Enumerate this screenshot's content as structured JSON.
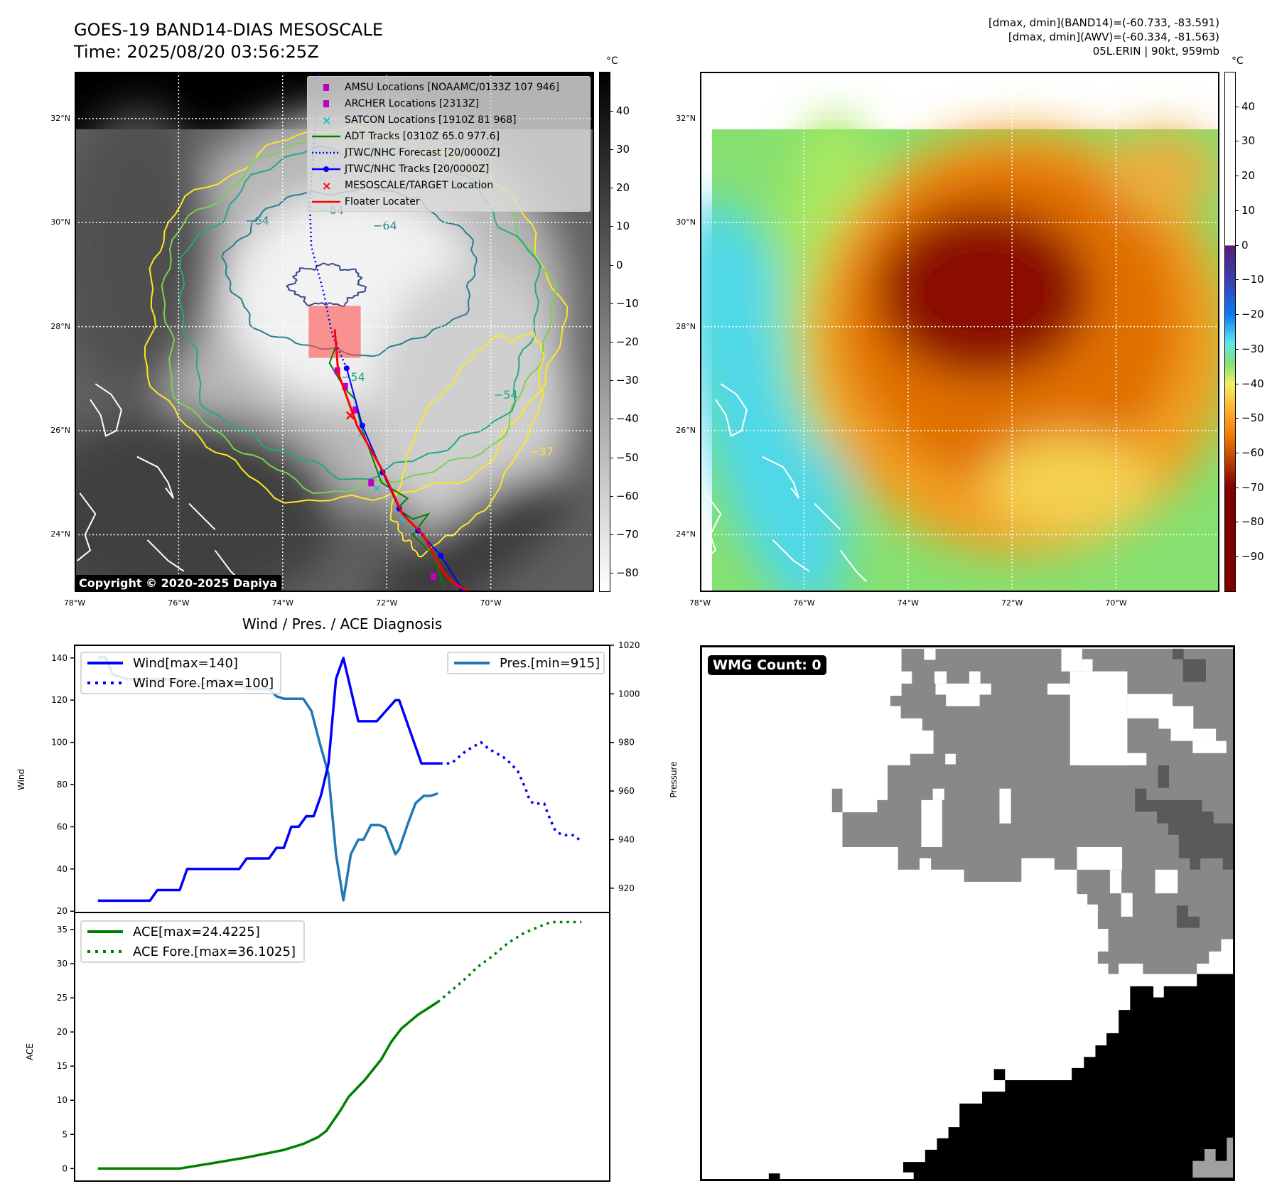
{
  "header": {
    "title": "GOES-19 BAND14-DIAS MESOSCALE",
    "time": "Time: 2025/08/20 03:56:25Z",
    "info": [
      "[dmax, dmin](BAND14)=(-60.733, -83.591)",
      "[dmax, dmin](AWV)=(-60.334, -81.563)",
      "05L.ERIN | 90kt, 959mb"
    ]
  },
  "map_ir": {
    "lat_labels": [
      "32°N",
      "30°N",
      "28°N",
      "26°N",
      "24°N"
    ],
    "lats": [
      32,
      30,
      28,
      26,
      24
    ],
    "lon_labels": [
      "78°W",
      "76°W",
      "74°W",
      "72°W",
      "70°W"
    ],
    "lons": [
      -78,
      -76,
      -74,
      -72,
      -70
    ],
    "extent": {
      "lon": [
        -78,
        -68.0
      ],
      "lat": [
        22.9,
        32.9
      ]
    },
    "legend": [
      {
        "label": "AMSU Locations [NOAAMC/0133Z 107 946]",
        "symbol": "square",
        "color": "#c000c0"
      },
      {
        "label": "ARCHER Locations [2313Z]",
        "symbol": "square",
        "color": "#c000c0"
      },
      {
        "label": "SATCON Locations [1910Z 81 968]",
        "symbol": "x",
        "color": "#17bfbf"
      },
      {
        "label": "ADT Tracks [0310Z 65.0 977.6]",
        "symbol": "line",
        "color": "#008000"
      },
      {
        "label": "JTWC/NHC Forecast [20/0000Z]",
        "symbol": "dotted",
        "color": "#0000ff"
      },
      {
        "label": "JTWC/NHC Tracks [20/0000Z]",
        "symbol": "line-dot",
        "color": "#0000ff"
      },
      {
        "label": "MESOSCALE/TARGET Location",
        "symbol": "x",
        "color": "#ff0000"
      },
      {
        "label": "Floater Locater",
        "symbol": "line",
        "color": "#ff0000"
      }
    ],
    "contour_labels": [
      "−64",
      "−64",
      "−64",
      "−54",
      "−54",
      "−37"
    ],
    "copyright": "Copyright © 2020-2025 Dapiya",
    "colorbar": {
      "unit": "°C",
      "ticks": [
        "40",
        "30",
        "20",
        "10",
        "0",
        "−10",
        "−20",
        "−30",
        "−40",
        "−50",
        "−60",
        "−70",
        "−80"
      ],
      "values": [
        40,
        30,
        20,
        10,
        0,
        -10,
        -20,
        -30,
        -40,
        -50,
        -60,
        -70,
        -80
      ],
      "range": [
        -84.4,
        50.3
      ]
    },
    "tracks": {
      "jtwc": [
        [
          -72.77,
          27.2
        ],
        [
          -72.47,
          26.1
        ],
        [
          -72.08,
          25.2
        ],
        [
          -71.76,
          24.5
        ],
        [
          -71.4,
          24.08
        ],
        [
          -70.96,
          23.6
        ],
        [
          -70.55,
          22.95
        ]
      ],
      "forecast": [
        [
          -72.77,
          27.2
        ],
        [
          -73.05,
          27.85
        ],
        [
          -73.2,
          28.6
        ],
        [
          -73.45,
          29.55
        ],
        [
          -73.48,
          30.4
        ],
        [
          -73.3,
          32.9
        ]
      ],
      "floater": [
        [
          -73.0,
          27.95
        ],
        [
          -72.93,
          27.1
        ],
        [
          -72.57,
          26.1
        ],
        [
          -72.06,
          25.2
        ],
        [
          -71.7,
          24.4
        ],
        [
          -71.3,
          24.0
        ],
        [
          -70.93,
          23.3
        ],
        [
          -70.7,
          23.05
        ],
        [
          -70.4,
          22.9
        ]
      ],
      "adt": [
        [
          -72.95,
          27.7
        ],
        [
          -73.1,
          27.3
        ],
        [
          -72.8,
          26.8
        ],
        [
          -72.6,
          26.6
        ],
        [
          -72.5,
          26.1
        ],
        [
          -72.1,
          25.0
        ],
        [
          -71.6,
          24.7
        ],
        [
          -71.8,
          24.5
        ],
        [
          -71.5,
          24.3
        ],
        [
          -71.2,
          24.4
        ],
        [
          -71.5,
          24.0
        ],
        [
          -71.1,
          23.6
        ],
        [
          -70.9,
          23.0
        ]
      ],
      "amsu": [
        [
          -72.95,
          27.15
        ],
        [
          -72.8,
          26.85
        ],
        [
          -72.6,
          26.4
        ],
        [
          -72.3,
          25.0
        ],
        [
          -71.1,
          23.2
        ]
      ],
      "satcon": [
        [
          -72.5,
          25.95
        ],
        [
          -72.2,
          24.9
        ],
        [
          -71.7,
          24.3
        ],
        [
          -71.45,
          24.1
        ]
      ],
      "target": [
        -72.72,
        26.3
      ],
      "mesoscale_box": {
        "lon": [
          -73.5,
          -72.5
        ],
        "lat": [
          27.4,
          28.4
        ]
      }
    }
  },
  "map_awv": {
    "lat_labels": [
      "32°N",
      "30°N",
      "28°N",
      "26°N",
      "24°N"
    ],
    "lon_labels": [
      "78°W",
      "76°W",
      "74°W",
      "72°W",
      "70°W"
    ],
    "colorbar": {
      "unit": "°C",
      "ticks": [
        "40",
        "30",
        "20",
        "10",
        "0",
        "−10",
        "−20",
        "−30",
        "−40",
        "−50",
        "−60",
        "−70",
        "−80",
        "−90"
      ],
      "values": [
        40,
        30,
        20,
        10,
        0,
        -10,
        -20,
        -30,
        -40,
        -50,
        -60,
        -70,
        -80,
        -90
      ],
      "range": [
        -99.6,
        50.2
      ]
    }
  },
  "chart_data": [
    {
      "type": "line",
      "title": "Wind / Pres. / ACE Diagnosis",
      "xlabel": "",
      "ylabel": "Wind",
      "ylabel_right": "Pressure",
      "xlim": [
        -3.13,
        68.8
      ],
      "ylim": [
        19.4,
        146
      ],
      "ylim_right": [
        910,
        1020
      ],
      "yticks": [
        20,
        40,
        60,
        80,
        100,
        120,
        140
      ],
      "yticks_right": [
        920,
        940,
        960,
        980,
        1000,
        1020
      ],
      "series": [
        {
          "name": "Wind[max=140]",
          "axis": "left",
          "style": "solid",
          "color": "#0000ff",
          "points": [
            [
              0,
              25
            ],
            [
              7,
              25
            ],
            [
              8,
              30
            ],
            [
              11,
              30
            ],
            [
              12,
              40
            ],
            [
              19,
              40
            ],
            [
              20,
              45
            ],
            [
              23,
              45
            ],
            [
              24,
              50
            ],
            [
              25,
              50
            ],
            [
              26,
              60
            ],
            [
              27,
              60
            ],
            [
              28,
              65
            ],
            [
              29,
              65
            ],
            [
              30,
              75
            ],
            [
              31,
              90
            ],
            [
              32,
              130
            ],
            [
              33,
              140
            ],
            [
              35,
              110
            ],
            [
              37.5,
              110
            ],
            [
              40,
              120
            ],
            [
              40.5,
              120
            ],
            [
              43.5,
              90
            ],
            [
              46,
              90
            ]
          ]
        },
        {
          "name": "Wind Fore.[max=100]",
          "axis": "left",
          "style": "dotted",
          "color": "#0000ff",
          "points": [
            [
              46,
              90
            ],
            [
              47.5,
              90
            ],
            [
              48.5,
              93
            ],
            [
              49.5,
              96
            ],
            [
              50.5,
              98
            ],
            [
              51.5,
              100
            ],
            [
              52.5,
              97
            ],
            [
              53.5,
              95
            ],
            [
              54.5,
              93
            ],
            [
              55.5,
              90
            ],
            [
              56.5,
              86
            ],
            [
              57,
              82
            ],
            [
              57.5,
              78
            ],
            [
              58,
              73
            ],
            [
              58.5,
              71
            ],
            [
              60,
              71
            ],
            [
              60.5,
              66
            ],
            [
              61,
              62
            ],
            [
              61.5,
              58
            ],
            [
              62.5,
              56
            ],
            [
              64,
              56
            ],
            [
              65,
              53
            ]
          ]
        },
        {
          "name": "Pres.[min=915]",
          "axis": "right",
          "style": "solid",
          "color": "#1f77b4",
          "points": [
            [
              0,
              1015
            ],
            [
              1,
              1015
            ],
            [
              2,
              1008
            ],
            [
              4,
              1006
            ],
            [
              11,
              1006
            ],
            [
              12,
              1004
            ],
            [
              14.7,
              1004
            ],
            [
              16,
              1006
            ],
            [
              17.5,
              1004
            ],
            [
              19,
              1004
            ],
            [
              20,
              1002
            ],
            [
              23,
              1002
            ],
            [
              24,
              999
            ],
            [
              25,
              998
            ],
            [
              27.6,
              998
            ],
            [
              28.7,
              993
            ],
            [
              29.8,
              980
            ],
            [
              31,
              967
            ],
            [
              32,
              934
            ],
            [
              33,
              915
            ],
            [
              34,
              934
            ],
            [
              35,
              940
            ],
            [
              35.7,
              940
            ],
            [
              36.7,
              946
            ],
            [
              37.8,
              946
            ],
            [
              38.6,
              945
            ],
            [
              40,
              934
            ],
            [
              40.5,
              936
            ],
            [
              41.6,
              946
            ],
            [
              42.7,
              955
            ],
            [
              43.8,
              958
            ],
            [
              44.7,
              958
            ],
            [
              45.7,
              959
            ]
          ]
        }
      ],
      "legend": [
        "top-left",
        "top-right"
      ]
    },
    {
      "type": "line",
      "xlabel": "",
      "ylabel": "ACE",
      "xlim": [
        -3.13,
        68.8
      ],
      "ylim": [
        -1.84,
        37.5
      ],
      "yticks": [
        0,
        5,
        10,
        15,
        20,
        25,
        30,
        35
      ],
      "series": [
        {
          "name": "ACE[max=24.4225]",
          "style": "solid",
          "color": "#008000",
          "points": [
            [
              0,
              0
            ],
            [
              11,
              0
            ],
            [
              15.5,
              0.8
            ],
            [
              19.9,
              1.6
            ],
            [
              24.9,
              2.7
            ],
            [
              27.6,
              3.6
            ],
            [
              29.6,
              4.6
            ],
            [
              30.7,
              5.5
            ],
            [
              32.6,
              8.5
            ],
            [
              33.7,
              10.5
            ],
            [
              35.9,
              13
            ],
            [
              38.1,
              16
            ],
            [
              39.4,
              18.5
            ],
            [
              40.8,
              20.5
            ],
            [
              41.9,
              21.5
            ],
            [
              43,
              22.5
            ],
            [
              45.7,
              24.4
            ]
          ]
        },
        {
          "name": "ACE Fore.[max=36.1025]",
          "style": "dotted",
          "color": "#008000",
          "points": [
            [
              45.7,
              24.4
            ],
            [
              46.9,
              25.5
            ],
            [
              49.1,
              27.5
            ],
            [
              51,
              29.5
            ],
            [
              52.9,
              31
            ],
            [
              55.1,
              33
            ],
            [
              57.3,
              34.5
            ],
            [
              59.5,
              35.5
            ],
            [
              60.9,
              36.1
            ],
            [
              65,
              36.1
            ]
          ]
        }
      ],
      "legend": "top-left"
    }
  ],
  "wmg": {
    "label": "WMG Count: 0"
  }
}
